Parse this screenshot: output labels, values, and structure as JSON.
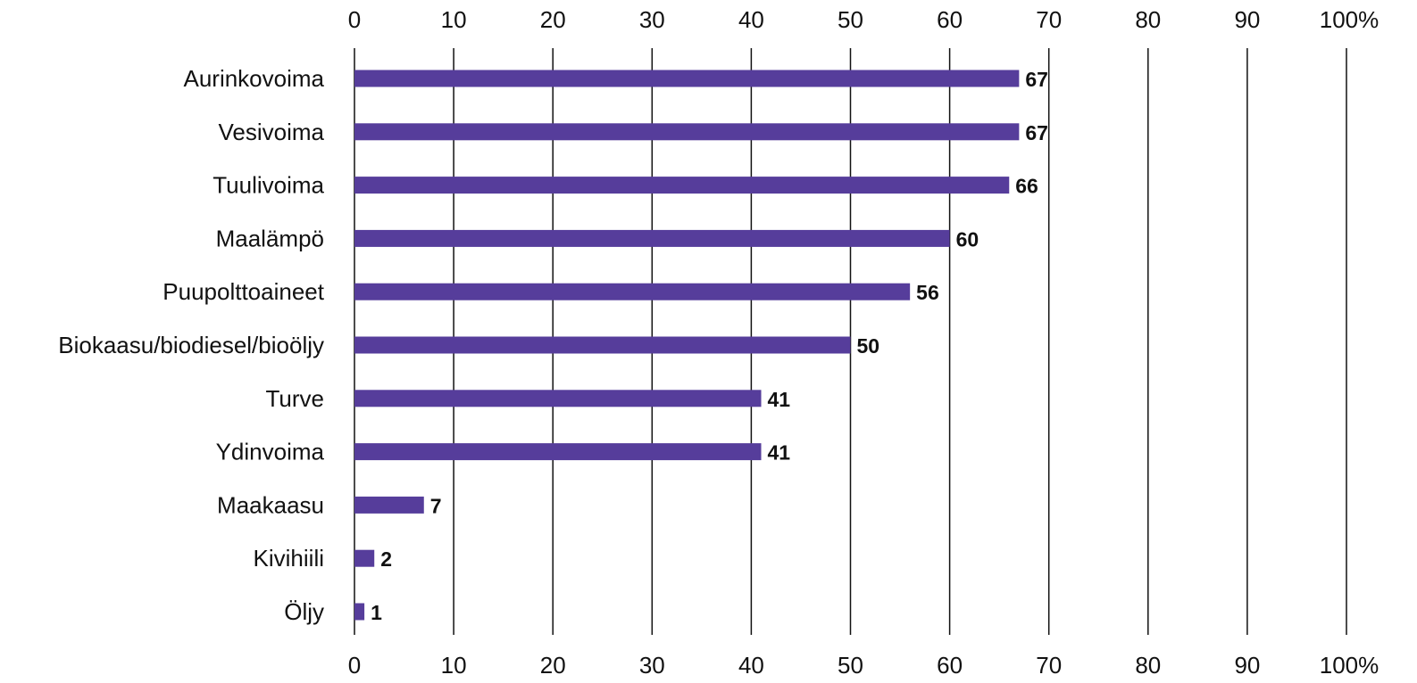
{
  "chart_data": {
    "type": "bar",
    "orientation": "horizontal",
    "title": "",
    "xlabel": "",
    "ylabel": "",
    "categories": [
      "Aurinkovoima",
      "Vesivoima",
      "Tuulivoima",
      "Maalämpö",
      "Puupolttoaineet",
      "Biokaasu/biodiesel/bioöljy",
      "Turve",
      "Ydinvoima",
      "Maakaasu",
      "Kivihiili",
      "Öljy"
    ],
    "values": [
      67,
      67,
      66,
      60,
      56,
      50,
      41,
      41,
      7,
      2,
      1
    ],
    "value_labels": [
      "67",
      "67",
      "66",
      "60",
      "56",
      "50",
      "41",
      "41",
      "7",
      "2",
      "1"
    ],
    "xlim": [
      0,
      100
    ],
    "ticks": [
      "0",
      "10",
      "20",
      "30",
      "40",
      "50",
      "60",
      "70",
      "80",
      "90",
      "100%"
    ],
    "tick_values": [
      0,
      10,
      20,
      30,
      40,
      50,
      60,
      70,
      80,
      90,
      100
    ],
    "axis_labels_top": true,
    "axis_labels_bottom": true,
    "grid": true,
    "bar_color": "#563d9b",
    "grid_color": "#111111"
  }
}
